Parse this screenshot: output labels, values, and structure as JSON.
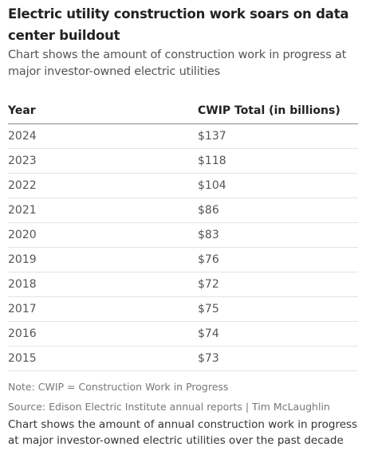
{
  "header": {
    "title": "Electric utility construction work soars on data center buildout",
    "subtitle": "Chart shows the amount of construction work in progress at major investor-owned electric utilities"
  },
  "table": {
    "columns": [
      "Year",
      "CWIP Total (in billions)"
    ],
    "rows": [
      [
        "2024",
        "$137"
      ],
      [
        "2023",
        "$118"
      ],
      [
        "2022",
        "$104"
      ],
      [
        "2021",
        "$86"
      ],
      [
        "2020",
        "$83"
      ],
      [
        "2019",
        "$76"
      ],
      [
        "2018",
        "$72"
      ],
      [
        "2017",
        "$75"
      ],
      [
        "2016",
        "$74"
      ],
      [
        "2015",
        "$73"
      ]
    ]
  },
  "footer": {
    "note": "Note: CWIP = Construction Work in Progress",
    "source": "Source: Edison Electric Institute annual reports | Tim McLaughlin",
    "description": "Chart shows the amount of annual construction work in progress at major investor-owned electric utilities over the past decade"
  }
}
